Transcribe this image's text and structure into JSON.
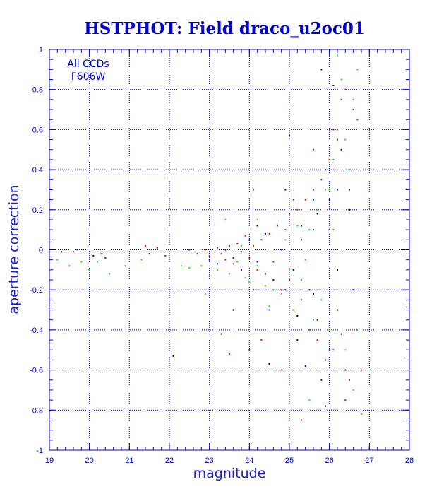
{
  "chart_data": {
    "type": "scatter",
    "title": "HSTPHOT: Field draco_u2oc01",
    "xlabel": "magnitude",
    "ylabel": "aperture correction",
    "xlim": [
      19,
      28
    ],
    "ylim": [
      -1,
      1
    ],
    "xticks": [
      "19",
      "20",
      "21",
      "22",
      "23",
      "24",
      "25",
      "26",
      "27",
      "28"
    ],
    "yticks": [
      "-1",
      "-0.8",
      "-0.6",
      "-0.4",
      "-0.2",
      "0",
      "0.2",
      "0.4",
      "0.6",
      "0.8",
      "1"
    ],
    "annotations": [
      "All CCDs",
      "F606W"
    ],
    "grid": true,
    "colors": {
      "frame": "#0000cc",
      "grid": "#0000cc",
      "red": "#ff0000",
      "green": "#00ee00",
      "blue": "#0000ff",
      "black": "#000000"
    },
    "series": [
      {
        "color": "#ff0000",
        "points": [
          [
            19.6,
            -0.01
          ],
          [
            20.3,
            -0.02
          ],
          [
            21.4,
            0.02
          ],
          [
            21.7,
            0.01
          ],
          [
            21.9,
            -0.03
          ],
          [
            22.1,
            -0.53
          ],
          [
            22.9,
            0.0
          ],
          [
            23.0,
            -0.03
          ],
          [
            23.2,
            0.01
          ],
          [
            23.3,
            -0.02
          ],
          [
            23.4,
            -0.05
          ],
          [
            23.5,
            0.02
          ],
          [
            23.6,
            -0.07
          ],
          [
            23.7,
            0.03
          ],
          [
            23.8,
            -0.01
          ],
          [
            23.9,
            0.07
          ],
          [
            24.0,
            -0.04
          ],
          [
            24.1,
            0.02
          ],
          [
            24.2,
            -0.1
          ],
          [
            24.3,
            0.05
          ],
          [
            24.4,
            -0.12
          ],
          [
            24.5,
            0.08
          ],
          [
            24.6,
            -0.06
          ],
          [
            24.7,
            0.12
          ],
          [
            24.8,
            -0.2
          ],
          [
            24.9,
            0.1
          ],
          [
            25.0,
            -0.15
          ],
          [
            25.0,
            0.15
          ],
          [
            25.1,
            -0.3
          ],
          [
            25.2,
            0.2
          ],
          [
            25.3,
            -0.25
          ],
          [
            25.4,
            0.25
          ],
          [
            25.5,
            -0.4
          ],
          [
            25.6,
            0.3
          ],
          [
            25.7,
            -0.45
          ],
          [
            25.8,
            0.35
          ],
          [
            25.9,
            -0.55
          ],
          [
            26.0,
            0.45
          ],
          [
            26.1,
            -0.5
          ],
          [
            26.2,
            0.6
          ],
          [
            26.3,
            0.75
          ],
          [
            26.4,
            0.8
          ],
          [
            26.5,
            -0.65
          ],
          [
            26.6,
            0.7
          ],
          [
            26.7,
            0.65
          ],
          [
            26.8,
            -0.6
          ],
          [
            24.3,
            -0.45
          ],
          [
            24.8,
            -0.6
          ],
          [
            25.3,
            -0.85
          ],
          [
            25.6,
            0.5
          ],
          [
            26.2,
            0.55
          ],
          [
            25.9,
            0.3
          ],
          [
            26.4,
            -0.75
          ],
          [
            23.5,
            -0.52
          ],
          [
            24.1,
            0.3
          ],
          [
            25.1,
            0.25
          ]
        ]
      },
      {
        "color": "#00ee00",
        "points": [
          [
            19.2,
            -0.05
          ],
          [
            19.5,
            -0.08
          ],
          [
            19.8,
            -0.06
          ],
          [
            20.0,
            -0.1
          ],
          [
            20.2,
            -0.06
          ],
          [
            20.5,
            -0.12
          ],
          [
            20.9,
            -0.08
          ],
          [
            21.3,
            -0.05
          ],
          [
            22.3,
            -0.08
          ],
          [
            22.5,
            -0.09
          ],
          [
            22.8,
            -0.08
          ],
          [
            23.0,
            -0.13
          ],
          [
            23.2,
            -0.1
          ],
          [
            23.5,
            -0.12
          ],
          [
            23.7,
            -0.06
          ],
          [
            23.9,
            -0.14
          ],
          [
            24.0,
            -0.16
          ],
          [
            24.2,
            -0.08
          ],
          [
            24.4,
            -0.18
          ],
          [
            24.6,
            -0.2
          ],
          [
            24.8,
            -0.22
          ],
          [
            25.0,
            -0.1
          ],
          [
            25.1,
            -0.3
          ],
          [
            25.3,
            -0.15
          ],
          [
            25.5,
            0.1
          ],
          [
            25.6,
            -0.35
          ],
          [
            25.7,
            0.2
          ],
          [
            25.8,
            -0.25
          ],
          [
            25.9,
            0.3
          ],
          [
            26.0,
            -0.4
          ],
          [
            26.1,
            0.45
          ],
          [
            26.2,
            0.97
          ],
          [
            26.3,
            0.85
          ],
          [
            26.4,
            -0.5
          ],
          [
            26.5,
            0.4
          ],
          [
            26.6,
            -0.7
          ],
          [
            26.7,
            0.9
          ],
          [
            26.8,
            -0.82
          ],
          [
            24.2,
            0.15
          ],
          [
            24.9,
            0.05
          ],
          [
            25.4,
            -0.05
          ],
          [
            25.2,
            0.12
          ],
          [
            23.8,
            0.02
          ],
          [
            26.1,
            0.1
          ],
          [
            25.5,
            -0.75
          ],
          [
            26.4,
            0.55
          ],
          [
            24.5,
            -0.28
          ],
          [
            22.9,
            -0.22
          ],
          [
            23.4,
            0.15
          ],
          [
            26.0,
            0.3
          ],
          [
            26.2,
            -0.3
          ],
          [
            26.6,
            0.75
          ],
          [
            26.7,
            -0.4
          ]
        ]
      },
      {
        "color": "#0000ff",
        "points": [
          [
            19.3,
            -0.01
          ],
          [
            19.7,
            0.0
          ],
          [
            20.1,
            -0.03
          ],
          [
            20.4,
            -0.04
          ],
          [
            21.5,
            -0.02
          ],
          [
            22.5,
            0.0
          ],
          [
            22.7,
            -0.02
          ],
          [
            23.0,
            -0.05
          ],
          [
            23.2,
            -0.07
          ],
          [
            23.4,
            0.0
          ],
          [
            23.6,
            -0.04
          ],
          [
            23.8,
            -0.1
          ],
          [
            24.0,
            0.05
          ],
          [
            24.2,
            -0.06
          ],
          [
            24.4,
            0.08
          ],
          [
            24.6,
            -0.15
          ],
          [
            24.8,
            0.0
          ],
          [
            24.9,
            -0.2
          ],
          [
            25.0,
            0.18
          ],
          [
            25.1,
            -0.1
          ],
          [
            25.3,
            0.12
          ],
          [
            25.5,
            -0.2
          ],
          [
            25.6,
            0.25
          ],
          [
            25.7,
            -0.35
          ],
          [
            25.9,
            0.4
          ],
          [
            26.0,
            -0.5
          ],
          [
            26.1,
            0.6
          ],
          [
            26.2,
            -0.3
          ],
          [
            26.3,
            0.5
          ],
          [
            26.4,
            -0.6
          ],
          [
            26.5,
            0.3
          ],
          [
            26.6,
            -0.2
          ],
          [
            25.8,
            -0.65
          ],
          [
            25.4,
            -0.58
          ],
          [
            23.3,
            -0.42
          ],
          [
            24.5,
            -0.3
          ],
          [
            24.9,
            0.3
          ],
          [
            26.0,
            0.25
          ],
          [
            25.2,
            -0.45
          ],
          [
            26.2,
            0.3
          ],
          [
            24.1,
            -0.2
          ],
          [
            25.6,
            0.1
          ]
        ]
      },
      {
        "color": "#000000",
        "points": [
          [
            25.0,
            0.57
          ],
          [
            25.8,
            0.9
          ],
          [
            26.1,
            0.82
          ],
          [
            25.6,
            -0.22
          ],
          [
            24.5,
            -0.57
          ],
          [
            25.9,
            -0.78
          ],
          [
            26.2,
            -0.1
          ],
          [
            24.0,
            -0.5
          ],
          [
            25.3,
            0.05
          ],
          [
            26.5,
            0.2
          ],
          [
            26.3,
            -0.42
          ],
          [
            23.6,
            -0.3
          ],
          [
            25.2,
            -0.33
          ],
          [
            26.0,
            0.1
          ],
          [
            22.1,
            -0.53
          ],
          [
            24.2,
            0.12
          ],
          [
            25.7,
            0.18
          ]
        ]
      }
    ]
  }
}
